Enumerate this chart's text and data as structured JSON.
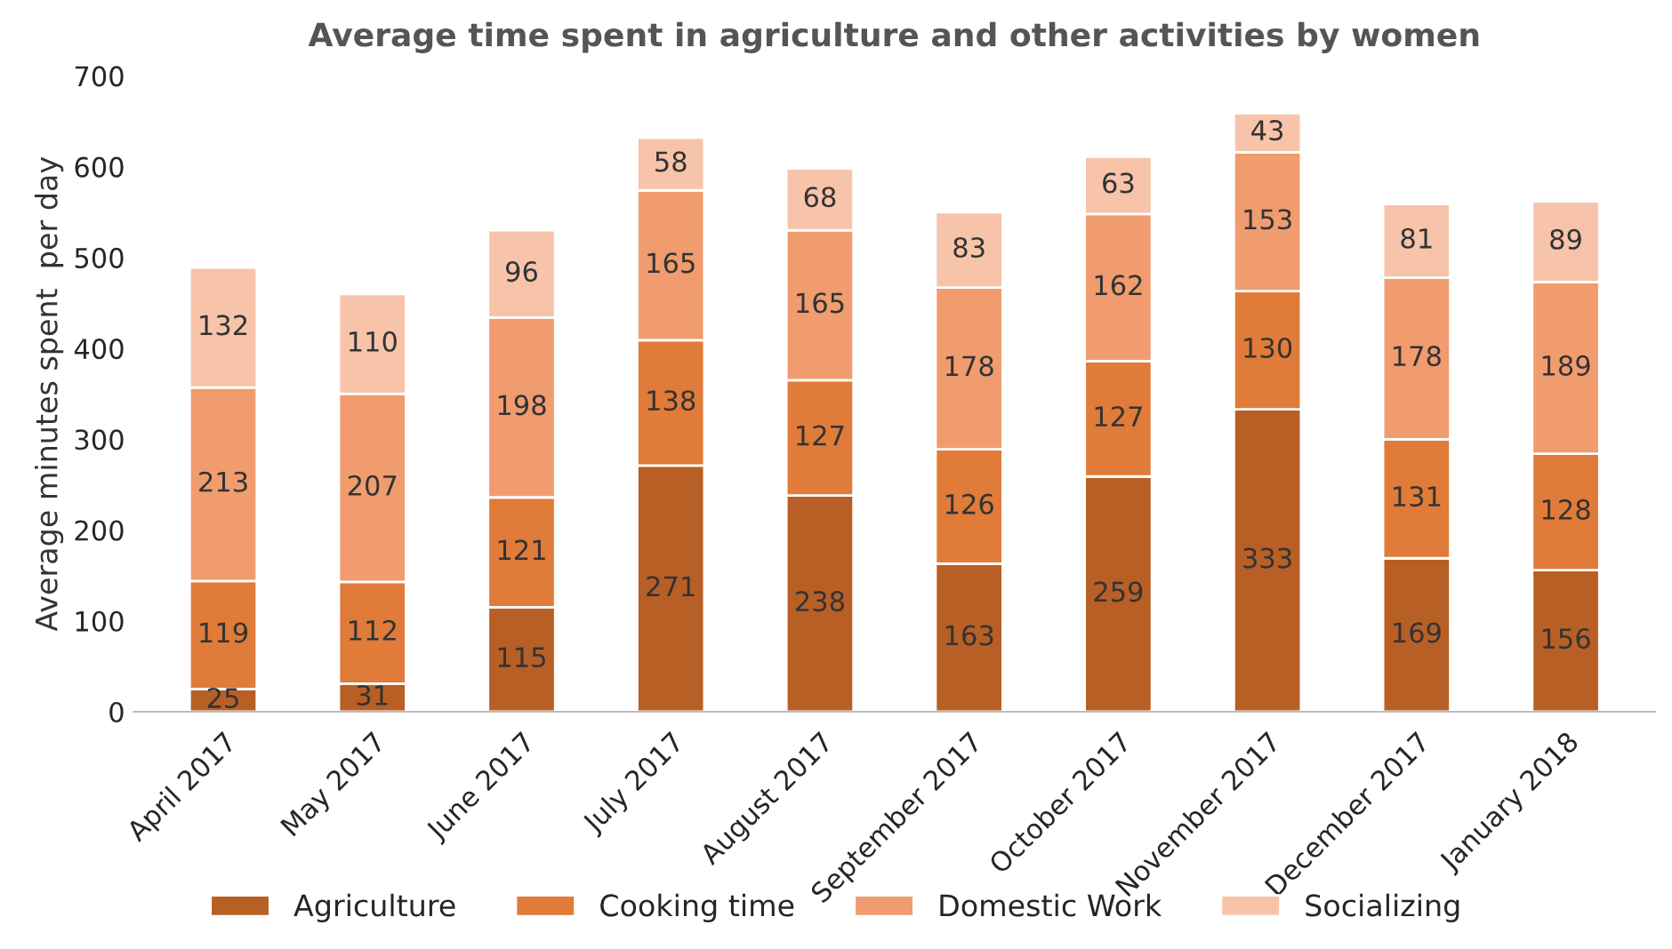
{
  "chart_data": {
    "type": "bar",
    "title": "Average time spent in agriculture and other activities by women",
    "ylabel": "Average minutes spent  per day",
    "categories": [
      "April 2017",
      "May 2017",
      "June 2017",
      "July 2017",
      "August 2017",
      "September 2017",
      "October 2017",
      "November 2017",
      "December 2017",
      "January 2018"
    ],
    "series": [
      {
        "name": "Agriculture",
        "color": "#b85f26",
        "values": [
          25,
          31,
          115,
          271,
          238,
          163,
          259,
          333,
          169,
          156
        ]
      },
      {
        "name": "Cooking time",
        "color": "#e07b39",
        "values": [
          119,
          112,
          121,
          138,
          127,
          126,
          127,
          130,
          131,
          128
        ]
      },
      {
        "name": "Domestic Work",
        "color": "#f09c6e",
        "values": [
          213,
          207,
          198,
          165,
          165,
          178,
          162,
          153,
          178,
          189
        ]
      },
      {
        "name": "Socializing",
        "color": "#f7c4aa",
        "values": [
          132,
          110,
          96,
          58,
          68,
          83,
          63,
          43,
          81,
          89
        ]
      }
    ],
    "stacked": true,
    "data_labels": true,
    "ylim": [
      0,
      700
    ],
    "yticks": [
      0,
      100,
      200,
      300,
      400,
      500,
      600,
      700
    ],
    "grid": false,
    "legend": "bottom"
  }
}
